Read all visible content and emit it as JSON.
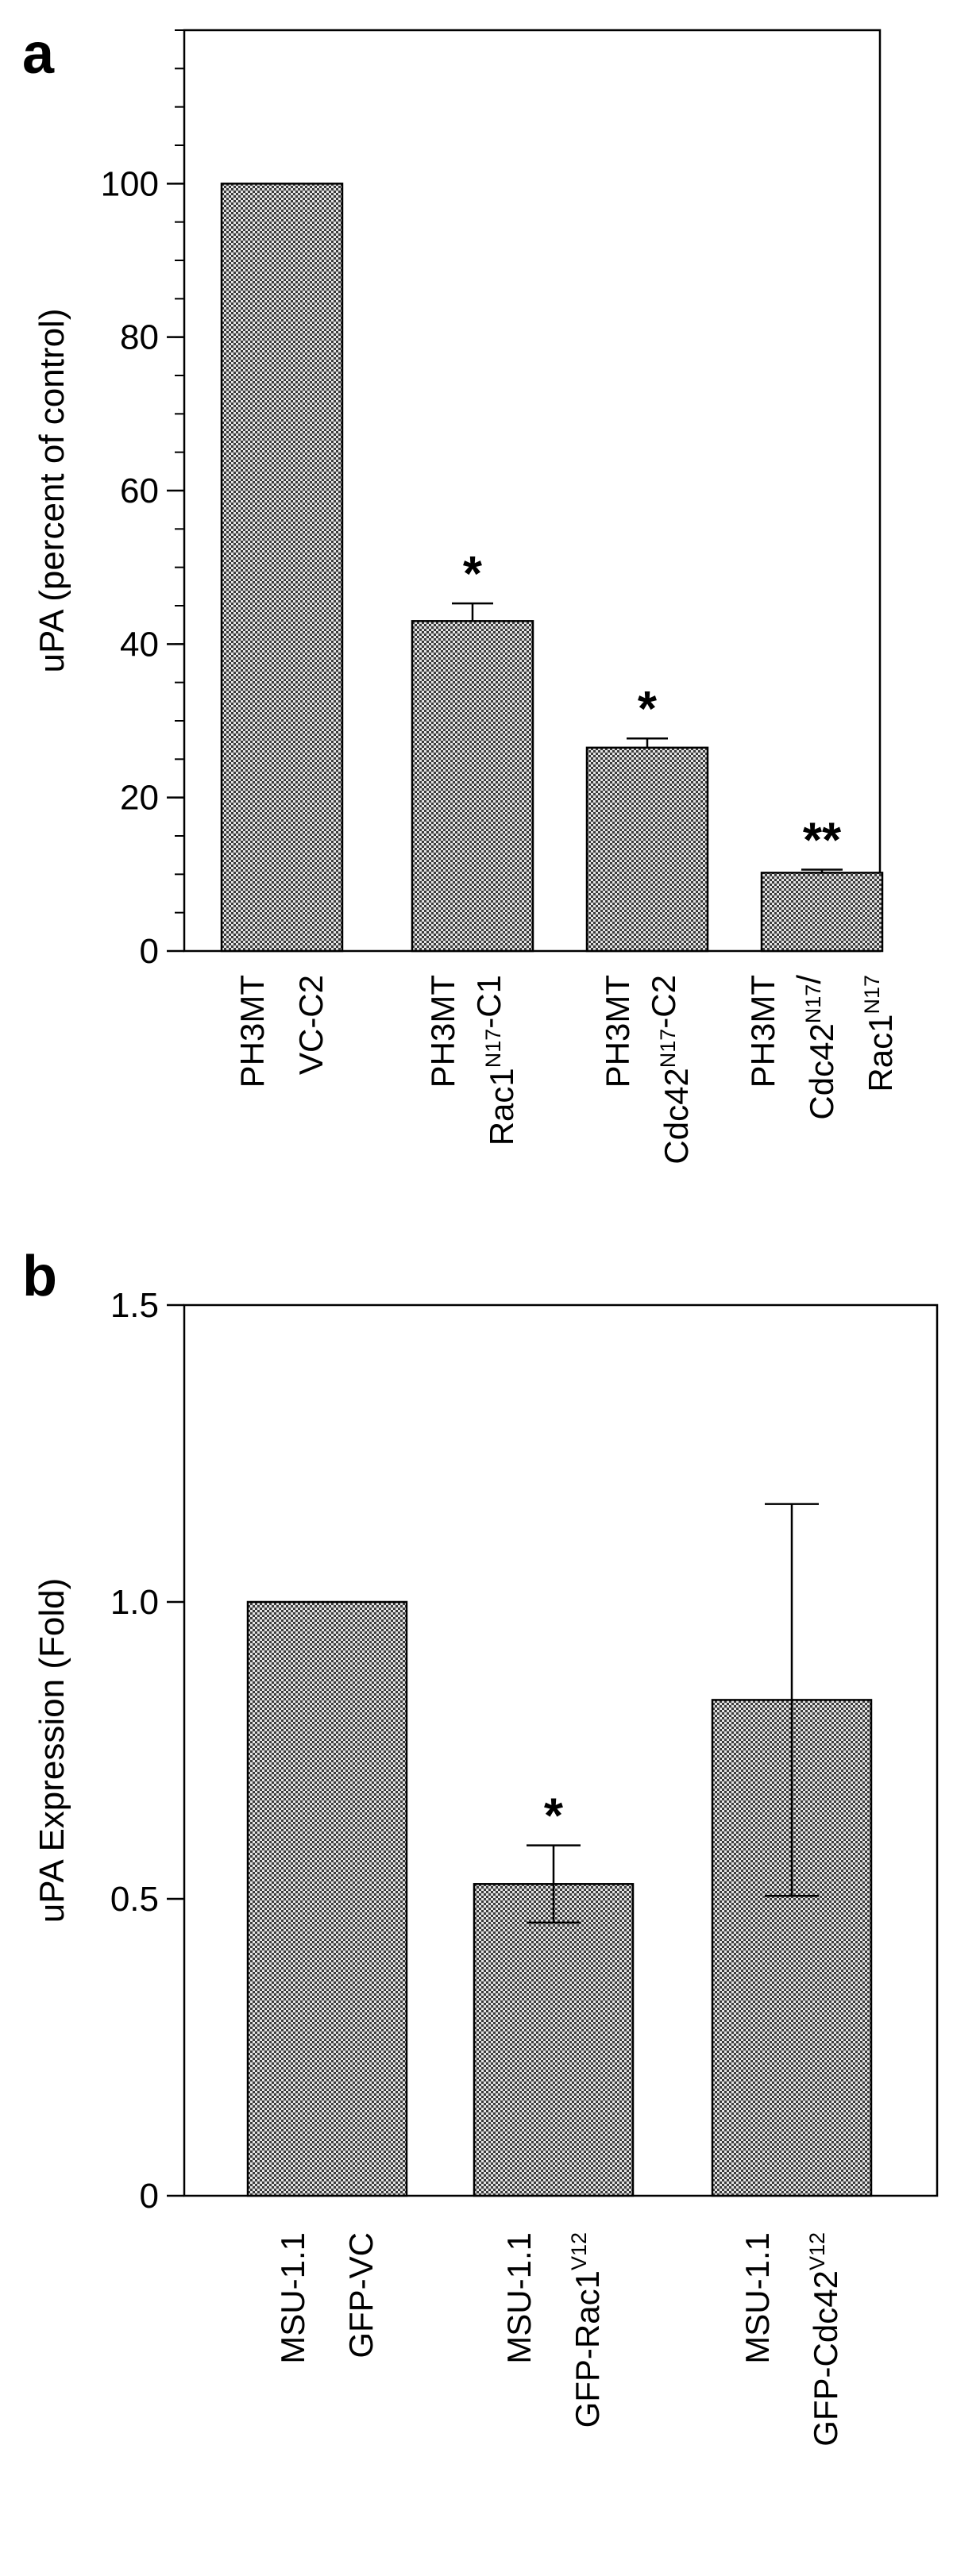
{
  "chart_data": [
    {
      "type": "bar",
      "panel": "a",
      "ylabel": "uPA (percent of control)",
      "ylim": [
        0,
        120
      ],
      "yticks": [
        0,
        20,
        40,
        60,
        80,
        100
      ],
      "categories": [
        [
          [
            {
              "t": "PH3MT"
            }
          ],
          [
            {
              "t": "VC-C2"
            }
          ]
        ],
        [
          [
            {
              "t": "PH3MT"
            }
          ],
          [
            {
              "t": "Rac1"
            },
            {
              "t": "N17",
              "sup": true
            },
            {
              "t": "-C1"
            }
          ]
        ],
        [
          [
            {
              "t": "PH3MT"
            }
          ],
          [
            {
              "t": "Cdc42"
            },
            {
              "t": "N17",
              "sup": true
            },
            {
              "t": "-C2"
            }
          ]
        ],
        [
          [
            {
              "t": "PH3MT"
            }
          ],
          [
            {
              "t": "Cdc42"
            },
            {
              "t": "N17",
              "sup": true
            },
            {
              "t": "/"
            }
          ],
          [
            {
              "t": "Rac1"
            },
            {
              "t": "N17",
              "sup": true
            }
          ]
        ]
      ],
      "values": [
        100,
        43,
        26.5,
        10.2
      ],
      "errors": [
        0,
        2.3,
        1.2,
        0.4
      ],
      "error_style": "upper",
      "significance": [
        "",
        "*",
        "*",
        "**"
      ]
    },
    {
      "type": "bar",
      "panel": "b",
      "ylabel": "uPA Expression (Fold)",
      "ylim": [
        0,
        1.5
      ],
      "yticks": [
        "0",
        "0.5",
        "1.0",
        "1.5"
      ],
      "categories": [
        [
          [
            {
              "t": "MSU-1.1"
            }
          ],
          [
            {
              "t": "GFP-VC"
            }
          ]
        ],
        [
          [
            {
              "t": "MSU-1.1"
            }
          ],
          [
            {
              "t": "GFP-Rac1"
            },
            {
              "t": "V12",
              "sup": true
            }
          ]
        ],
        [
          [
            {
              "t": "MSU-1.1"
            }
          ],
          [
            {
              "t": "GFP-Cdc42"
            },
            {
              "t": "V12",
              "sup": true
            }
          ]
        ]
      ],
      "values": [
        1.0,
        0.525,
        0.835
      ],
      "errors": [
        0,
        0.065,
        0.33
      ],
      "error_style": "both",
      "significance": [
        "",
        "*",
        ""
      ]
    }
  ]
}
